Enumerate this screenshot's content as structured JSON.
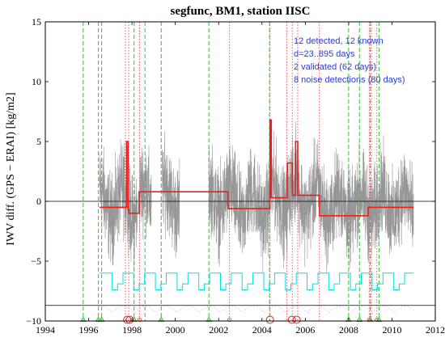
{
  "chart_data": {
    "type": "line",
    "title": "segfunc, BM1, station IISC",
    "xlabel": "",
    "ylabel": "IWV diff. (GPS − ERAI) [kg/m2]",
    "xlim": [
      1994,
      2012
    ],
    "ylim": [
      -10,
      15
    ],
    "x_ticks": [
      "1994",
      "1996",
      "1998",
      "2000",
      "2002",
      "2004",
      "2006",
      "2008",
      "2010",
      "2012"
    ],
    "y_ticks": [
      "−10",
      "−5",
      "0",
      "5",
      "10",
      "15"
    ],
    "annotations": [
      "12 detected, 12 known",
      "d=23..895 days",
      "2 validated (62 days)",
      "8 noise detections (80 days)"
    ],
    "colors": {
      "raw_series": "#8c8c8c",
      "segmented_mean": "#e8211c",
      "noise_indicator": "#00e0e0",
      "known_breaks": "#22cc22",
      "detected_breaks": "#ff5060",
      "annotation_text": "#2a3bdc",
      "reference_lines": "#000000",
      "validated_markers": "#e8211c"
    },
    "segmented_mean": {
      "x": [
        1996.5,
        1997.75,
        1997.75,
        1997.82,
        1997.82,
        1997.86,
        1997.86,
        1998.33,
        1998.33,
        2002.43,
        2002.43,
        2004.37,
        2004.37,
        2004.43,
        2004.43,
        2005.17,
        2005.17,
        2005.4,
        2005.4,
        2005.55,
        2005.55,
        2005.65,
        2005.65,
        2006.65,
        2006.65,
        2008.9,
        2008.9,
        2011.0
      ],
      "y": [
        -0.5,
        -0.5,
        5.0,
        5.0,
        -0.7,
        -0.7,
        -1.0,
        -1.0,
        0.8,
        0.8,
        -0.6,
        -0.6,
        6.8,
        6.8,
        0.3,
        0.3,
        3.2,
        3.2,
        0.5,
        0.5,
        5.0,
        5.0,
        0.5,
        0.5,
        -1.2,
        -1.2,
        -0.5,
        -0.5
      ]
    },
    "known_breaks": [
      1995.75,
      1996.45,
      1996.6,
      1998.1,
      1998.6,
      1999.35,
      2001.55,
      2004.35,
      2008.0,
      2008.5,
      2009.0,
      2009.4
    ],
    "detected_breaks": [
      1997.7,
      1997.85,
      1998.35,
      2002.5,
      2004.37,
      2005.15,
      2005.4,
      2005.65,
      2006.65,
      2008.95,
      2009.05,
      2009.3
    ],
    "reference_lines": [
      0,
      -8.7
    ],
    "validated_markers": [
      1997.78,
      1997.9,
      2004.37,
      2005.38,
      2005.6
    ],
    "noise_markers": [
      1998.35,
      2002.5,
      2008.95,
      2009.3
    ],
    "known_markers": [
      1995.75,
      1996.45,
      1996.6,
      1998.1,
      1999.35,
      2001.55,
      2008.0,
      2008.5,
      2009.0,
      2009.4
    ],
    "raw_data_periods": [
      [
        1996.5,
        1998.25
      ],
      [
        1998.35,
        1998.9
      ],
      [
        1999.4,
        2000.2
      ],
      [
        2001.55,
        2011.0
      ]
    ],
    "noise_indicator": {
      "x_start": 1996.5,
      "x_end": 2011.0,
      "low": -7.4,
      "high": -6.0,
      "cycles_per_year": 1
    }
  }
}
